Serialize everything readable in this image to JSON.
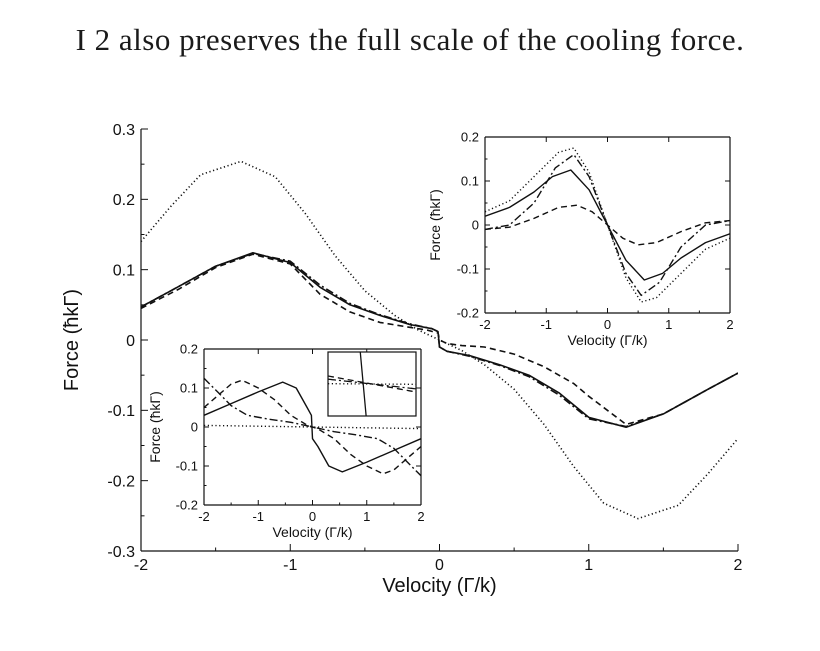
{
  "caption": "I 2 also preserves the full scale of the cooling force.",
  "chart_data": [
    {
      "id": "main",
      "type": "line",
      "xlabel": "Velocity (Γ/k)",
      "ylabel": "Force (ħkΓ)",
      "xlim": [
        -2,
        2
      ],
      "ylim": [
        -0.3,
        0.3
      ],
      "xticks": [
        -2,
        -1,
        0,
        1,
        2
      ],
      "xtick_labels": [
        "-2",
        "-1",
        "0",
        "1",
        "2"
      ],
      "yticks": [
        -0.3,
        -0.2,
        -0.1,
        0,
        0.1,
        0.2,
        0.3
      ],
      "ytick_labels": [
        "-0.3",
        "-0.2",
        "-0.1",
        "0",
        "0.1",
        "0.2",
        "0.3"
      ],
      "grid": false,
      "series": [
        {
          "style": "dotted",
          "points": [
            [
              -2,
              0.14
            ],
            [
              -1.8,
              0.19
            ],
            [
              -1.6,
              0.235
            ],
            [
              -1.33,
              0.254
            ],
            [
              -1.1,
              0.232
            ],
            [
              -0.9,
              0.18
            ],
            [
              -0.7,
              0.12
            ],
            [
              -0.5,
              0.07
            ],
            [
              -0.3,
              0.035
            ],
            [
              -0.15,
              0.015
            ],
            [
              0,
              0
            ],
            [
              0.15,
              -0.015
            ],
            [
              0.3,
              -0.035
            ],
            [
              0.5,
              -0.07
            ],
            [
              0.7,
              -0.12
            ],
            [
              0.9,
              -0.18
            ],
            [
              1.1,
              -0.232
            ],
            [
              1.33,
              -0.254
            ],
            [
              1.6,
              -0.235
            ],
            [
              1.8,
              -0.19
            ],
            [
              2,
              -0.14
            ]
          ]
        },
        {
          "style": "solid",
          "points": [
            [
              -2,
              0.047
            ],
            [
              -1.8,
              0.07
            ],
            [
              -1.5,
              0.105
            ],
            [
              -1.25,
              0.124
            ],
            [
              -1.0,
              0.11
            ],
            [
              -0.8,
              0.075
            ],
            [
              -0.6,
              0.05
            ],
            [
              -0.4,
              0.035
            ],
            [
              -0.2,
              0.022
            ],
            [
              -0.05,
              0.016
            ],
            [
              -0.01,
              0.012
            ],
            [
              0,
              -0.01
            ],
            [
              0.05,
              -0.016
            ],
            [
              0.2,
              -0.022
            ],
            [
              0.4,
              -0.035
            ],
            [
              0.6,
              -0.05
            ],
            [
              0.8,
              -0.075
            ],
            [
              1.0,
              -0.11
            ],
            [
              1.25,
              -0.124
            ],
            [
              1.5,
              -0.105
            ],
            [
              1.8,
              -0.07
            ],
            [
              2,
              -0.047
            ]
          ]
        },
        {
          "style": "dashdot",
          "points": [
            [
              -2,
              0.047
            ],
            [
              -1.8,
              0.07
            ],
            [
              -1.5,
              0.105
            ],
            [
              -1.25,
              0.123
            ],
            [
              -1.0,
              0.112
            ],
            [
              -0.8,
              0.078
            ],
            [
              -0.6,
              0.052
            ],
            [
              -0.4,
              0.036
            ],
            [
              -0.2,
              0.023
            ],
            [
              -0.05,
              0.016
            ],
            [
              -0.01,
              0.012
            ],
            [
              0,
              -0.01
            ],
            [
              0.05,
              -0.016
            ],
            [
              0.2,
              -0.023
            ],
            [
              0.4,
              -0.036
            ],
            [
              0.6,
              -0.052
            ],
            [
              0.8,
              -0.078
            ],
            [
              1.0,
              -0.112
            ],
            [
              1.25,
              -0.123
            ],
            [
              1.5,
              -0.105
            ],
            [
              1.8,
              -0.07
            ],
            [
              2,
              -0.047
            ]
          ]
        },
        {
          "style": "dashed",
          "points": [
            [
              -2,
              0.045
            ],
            [
              -1.75,
              0.072
            ],
            [
              -1.5,
              0.103
            ],
            [
              -1.25,
              0.122
            ],
            [
              -1.0,
              0.108
            ],
            [
              -0.8,
              0.065
            ],
            [
              -0.6,
              0.04
            ],
            [
              -0.4,
              0.025
            ],
            [
              -0.2,
              0.018
            ],
            [
              -0.08,
              0.014
            ],
            [
              -0.01,
              0.01
            ],
            [
              0,
              0
            ],
            [
              0.05,
              -0.005
            ],
            [
              0.15,
              -0.008
            ],
            [
              0.3,
              -0.01
            ],
            [
              0.5,
              -0.02
            ],
            [
              0.7,
              -0.038
            ],
            [
              0.9,
              -0.062
            ],
            [
              1.0,
              -0.08
            ],
            [
              1.25,
              -0.12
            ],
            [
              1.5,
              -0.105
            ],
            [
              1.8,
              -0.07
            ],
            [
              2,
              -0.047
            ]
          ]
        }
      ]
    },
    {
      "id": "inset_top_right",
      "type": "line",
      "xlabel": "Velocity (Γ/k)",
      "ylabel": "Force (ħkΓ)",
      "xlim": [
        -2,
        2
      ],
      "ylim": [
        -0.2,
        0.2
      ],
      "xticks": [
        -2,
        -1,
        0,
        1,
        2
      ],
      "xtick_labels": [
        "-2",
        "-1",
        "0",
        "1",
        "2"
      ],
      "yticks": [
        -0.2,
        -0.1,
        0,
        0.1,
        0.2
      ],
      "ytick_labels": [
        "-0.2",
        "-0.1",
        "0",
        "0.1",
        "0.2"
      ],
      "grid": false,
      "series": [
        {
          "style": "dotted",
          "points": [
            [
              -2,
              0.03
            ],
            [
              -1.6,
              0.055
            ],
            [
              -1.2,
              0.11
            ],
            [
              -0.8,
              0.165
            ],
            [
              -0.55,
              0.175
            ],
            [
              -0.3,
              0.12
            ],
            [
              0,
              0
            ],
            [
              0.3,
              -0.12
            ],
            [
              0.55,
              -0.175
            ],
            [
              0.8,
              -0.165
            ],
            [
              1.2,
              -0.11
            ],
            [
              1.6,
              -0.055
            ],
            [
              2,
              -0.03
            ]
          ]
        },
        {
          "style": "solid",
          "points": [
            [
              -2,
              0.02
            ],
            [
              -1.6,
              0.04
            ],
            [
              -1.2,
              0.075
            ],
            [
              -0.9,
              0.11
            ],
            [
              -0.6,
              0.125
            ],
            [
              -0.3,
              0.08
            ],
            [
              0,
              0
            ],
            [
              0.3,
              -0.08
            ],
            [
              0.6,
              -0.125
            ],
            [
              0.9,
              -0.11
            ],
            [
              1.2,
              -0.075
            ],
            [
              1.6,
              -0.04
            ],
            [
              2,
              -0.02
            ]
          ]
        },
        {
          "style": "dashdot",
          "points": [
            [
              -2,
              -0.01
            ],
            [
              -1.6,
              0.0
            ],
            [
              -1.2,
              0.05
            ],
            [
              -0.85,
              0.13
            ],
            [
              -0.55,
              0.16
            ],
            [
              -0.3,
              0.11
            ],
            [
              0,
              0
            ],
            [
              0.3,
              -0.11
            ],
            [
              0.55,
              -0.16
            ],
            [
              0.85,
              -0.13
            ],
            [
              1.2,
              -0.05
            ],
            [
              1.6,
              0.0
            ],
            [
              2,
              0.01
            ]
          ]
        },
        {
          "style": "dashed",
          "points": [
            [
              -2,
              -0.01
            ],
            [
              -1.6,
              -0.005
            ],
            [
              -1.2,
              0.015
            ],
            [
              -0.8,
              0.04
            ],
            [
              -0.5,
              0.045
            ],
            [
              -0.25,
              0.03
            ],
            [
              0,
              0
            ],
            [
              0.25,
              -0.03
            ],
            [
              0.5,
              -0.045
            ],
            [
              0.8,
              -0.04
            ],
            [
              1.2,
              -0.015
            ],
            [
              1.6,
              0.005
            ],
            [
              2,
              0.01
            ]
          ]
        }
      ]
    },
    {
      "id": "inset_bottom_left",
      "type": "line",
      "xlabel": "Velocity (Γ/k)",
      "ylabel": "Force (ħkΓ)",
      "xlim": [
        -2,
        2
      ],
      "ylim": [
        -0.2,
        0.2
      ],
      "xticks": [
        -2,
        -1,
        0,
        1,
        2
      ],
      "xtick_labels": [
        "-2",
        "-1",
        "0",
        "1",
        "2"
      ],
      "yticks": [
        -0.2,
        -0.1,
        0,
        0.1,
        0.2
      ],
      "ytick_labels": [
        "-0.2",
        "-0.1",
        "0",
        "0.1",
        "0.2"
      ],
      "grid": false,
      "series": [
        {
          "style": "dotted",
          "points": [
            [
              -2,
              0.004
            ],
            [
              -1,
              0.002
            ],
            [
              0,
              0
            ],
            [
              1,
              -0.002
            ],
            [
              2,
              -0.004
            ]
          ]
        },
        {
          "style": "solid",
          "points": [
            [
              -2,
              0.03
            ],
            [
              -1.5,
              0.06
            ],
            [
              -1.0,
              0.09
            ],
            [
              -0.55,
              0.115
            ],
            [
              -0.3,
              0.1
            ],
            [
              -0.1,
              0.05
            ],
            [
              -0.02,
              0.03
            ],
            [
              0,
              -0.03
            ],
            [
              0.1,
              -0.05
            ],
            [
              0.3,
              -0.1
            ],
            [
              0.55,
              -0.115
            ],
            [
              1.0,
              -0.09
            ],
            [
              1.5,
              -0.06
            ],
            [
              2,
              -0.03
            ]
          ]
        },
        {
          "style": "dashdot",
          "points": [
            [
              -2,
              0.125
            ],
            [
              -1.75,
              0.09
            ],
            [
              -1.5,
              0.055
            ],
            [
              -1.2,
              0.03
            ],
            [
              -0.8,
              0.02
            ],
            [
              -0.4,
              0.012
            ],
            [
              0,
              0
            ],
            [
              0.4,
              -0.012
            ],
            [
              0.8,
              -0.02
            ],
            [
              1.2,
              -0.03
            ],
            [
              1.5,
              -0.055
            ],
            [
              1.75,
              -0.09
            ],
            [
              2,
              -0.125
            ]
          ]
        },
        {
          "style": "dashed",
          "points": [
            [
              -2,
              0.05
            ],
            [
              -1.75,
              0.08
            ],
            [
              -1.5,
              0.11
            ],
            [
              -1.3,
              0.12
            ],
            [
              -1.0,
              0.1
            ],
            [
              -0.7,
              0.07
            ],
            [
              -0.4,
              0.03
            ],
            [
              -0.1,
              0.005
            ],
            [
              0,
              0
            ],
            [
              0.1,
              -0.005
            ],
            [
              0.4,
              -0.03
            ],
            [
              0.7,
              -0.07
            ],
            [
              1.0,
              -0.1
            ],
            [
              1.3,
              -0.12
            ],
            [
              1.5,
              -0.11
            ],
            [
              1.75,
              -0.08
            ],
            [
              2,
              -0.05
            ]
          ]
        }
      ]
    }
  ]
}
